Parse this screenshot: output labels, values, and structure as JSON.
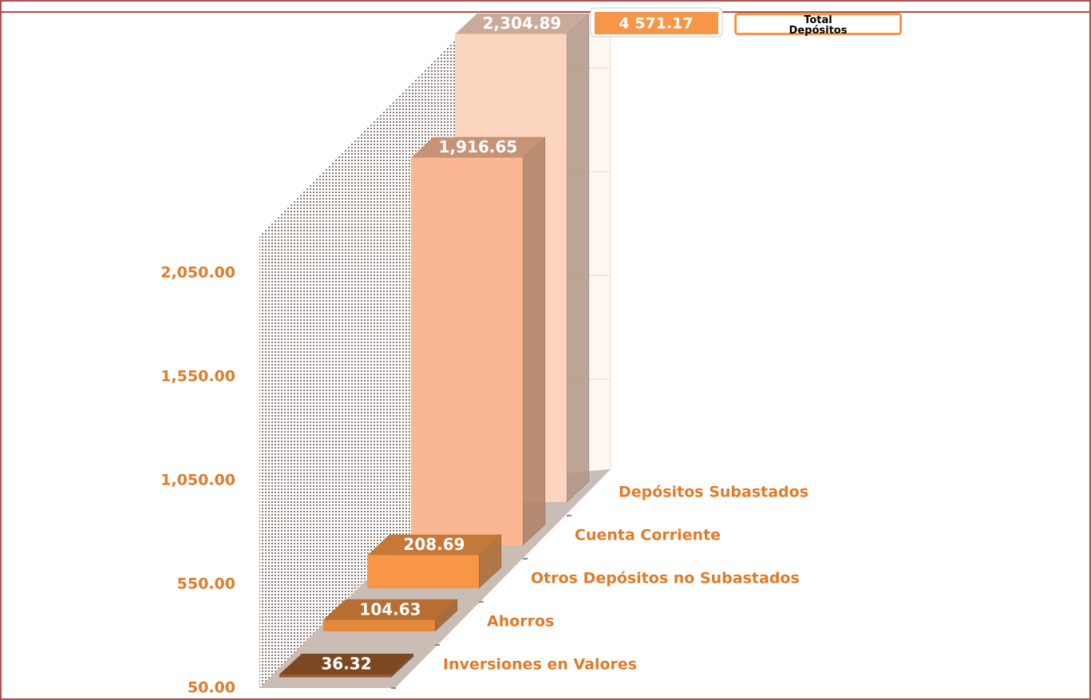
{
  "chart_data": {
    "type": "bar3d",
    "categories": [
      "Inversiones en Valores",
      "Ahorros",
      "Otros Depósitos no Subastados",
      "Cuenta Corriente",
      "Depósitos Subastados"
    ],
    "values": [
      36.32,
      104.63,
      208.69,
      1916.65,
      2304.89
    ],
    "value_labels": [
      "36.32",
      "104.63",
      "208.69",
      "1,916.65",
      "2,304.89"
    ],
    "colors": [
      "#9b5a2a",
      "#e58a3c",
      "#f79646",
      "#fab792",
      "#fcd5bf"
    ],
    "ylim": [
      50,
      2550
    ],
    "yticks": [
      {
        "value": 50,
        "label": "50.00"
      },
      {
        "value": 550,
        "label": "550.00"
      },
      {
        "value": 1050,
        "label": "1,050.00"
      },
      {
        "value": 1550,
        "label": "1,550.00"
      },
      {
        "value": 2050,
        "label": "2,050.00"
      }
    ],
    "total": 4571.17,
    "total_label": "4 571.17",
    "total_text": "Total Depósitos"
  }
}
